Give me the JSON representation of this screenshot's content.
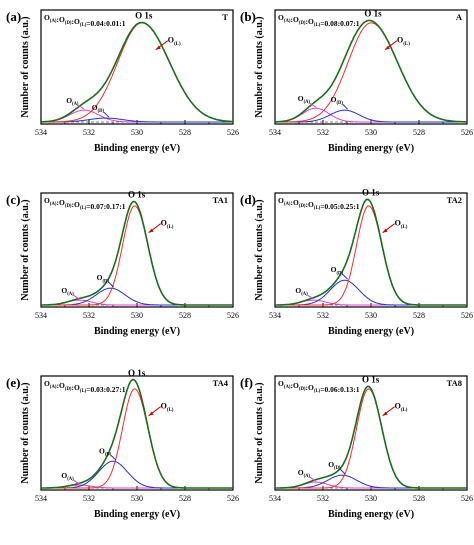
{
  "figure": {
    "colors": {
      "total": "#1a6e1a",
      "lattice": "#ff2a2a",
      "defect": "#1f2fd6",
      "adsorbed": "#e23bd8",
      "fitted": "#3a3a3a",
      "arrow": "#cc0000"
    }
  },
  "chart_data": [
    {
      "type": "line",
      "panel_label": "(a)",
      "sample": "T",
      "ratio": {
        "prefix": "O",
        "a_sub": "(A)",
        "d_sub": "(D)",
        "l_sub": "(L)",
        "value": "=0.04:0.01:1"
      },
      "peak_label": "O 1s",
      "component_labels": {
        "lattice": "O",
        "lattice_sub": "(L)",
        "defect": "O",
        "defect_sub": "(D)",
        "adsorbed": "O",
        "adsorbed_sub": "(A)"
      },
      "xlabel": "Binding energy (eV)",
      "ylabel": "Number of counts (a.u.)",
      "xlim": [
        534,
        526
      ],
      "xticks": [
        "534",
        "532",
        "530",
        "528",
        "526"
      ],
      "ylim": [
        0,
        1.15
      ],
      "baseline": 0.02,
      "peaks": {
        "lattice": {
          "center": 529.8,
          "height": 1.0,
          "sigma_lo": 1.0,
          "sigma_hi": 1.15
        },
        "defect": {
          "center": 531.3,
          "height": 0.04,
          "sigma_lo": 0.7,
          "sigma_hi": 0.7
        },
        "adsorbed": {
          "center": 532.2,
          "height": 0.12,
          "sigma_lo": 0.6,
          "sigma_hi": 0.6
        }
      }
    },
    {
      "type": "line",
      "panel_label": "(b)",
      "sample": "A",
      "ratio": {
        "prefix": "O",
        "a_sub": "(A)",
        "d_sub": "(D)",
        "l_sub": "(L)",
        "value": "=0.08:0.07:1"
      },
      "peak_label": "O 1s",
      "component_labels": {
        "lattice": "O",
        "lattice_sub": "(L)",
        "defect": "O",
        "defect_sub": "(D)",
        "adsorbed": "O",
        "adsorbed_sub": "(A)"
      },
      "xlabel": "Binding energy (eV)",
      "ylabel": "Number of counts (a.u.)",
      "xlim": [
        534,
        526
      ],
      "xticks": [
        "534",
        "532",
        "530",
        "528",
        "526"
      ],
      "ylim": [
        0,
        1.15
      ],
      "baseline": 0.02,
      "peaks": {
        "lattice": {
          "center": 530.0,
          "height": 1.0,
          "sigma_lo": 0.95,
          "sigma_hi": 1.1
        },
        "defect": {
          "center": 531.1,
          "height": 0.12,
          "sigma_lo": 0.6,
          "sigma_hi": 0.6
        },
        "adsorbed": {
          "center": 532.3,
          "height": 0.14,
          "sigma_lo": 0.55,
          "sigma_hi": 0.55
        }
      }
    },
    {
      "type": "line",
      "panel_label": "(c)",
      "sample": "TA1",
      "ratio": {
        "prefix": "O",
        "a_sub": "(A)",
        "d_sub": "(D)",
        "l_sub": "(L)",
        "value": "=0.07:0.17:1"
      },
      "peak_label": "O 1s",
      "component_labels": {
        "lattice": "O",
        "lattice_sub": "(L)",
        "defect": "O",
        "defect_sub": "(D)",
        "adsorbed": "O",
        "adsorbed_sub": "(A)"
      },
      "xlabel": "Binding energy (eV)",
      "ylabel": "Number of counts (a.u.)",
      "xlim": [
        534,
        526
      ],
      "xticks": [
        "534",
        "532",
        "530",
        "528",
        "526"
      ],
      "ylim": [
        0,
        1.15
      ],
      "baseline": 0.02,
      "peaks": {
        "lattice": {
          "center": 530.1,
          "height": 1.0,
          "sigma_lo": 0.5,
          "sigma_hi": 0.55
        },
        "defect": {
          "center": 531.1,
          "height": 0.17,
          "sigma_lo": 0.6,
          "sigma_hi": 0.6
        },
        "adsorbed": {
          "center": 532.4,
          "height": 0.05,
          "sigma_lo": 0.5,
          "sigma_hi": 0.5
        }
      }
    },
    {
      "type": "line",
      "panel_label": "(d)",
      "sample": "TA2",
      "ratio": {
        "prefix": "O",
        "a_sub": "(A)",
        "d_sub": "(D)",
        "l_sub": "(L)",
        "value": "=0.05:0.25:1"
      },
      "peak_label": "O 1s",
      "component_labels": {
        "lattice": "O",
        "lattice_sub": "(L)",
        "defect": "O",
        "defect_sub": "(D)",
        "adsorbed": "O",
        "adsorbed_sub": "(A)"
      },
      "xlabel": "Binding energy (eV)",
      "ylabel": "Number of counts (a.u.)",
      "xlim": [
        534,
        526
      ],
      "xticks": [
        "534",
        "532",
        "530",
        "528",
        "526"
      ],
      "ylim": [
        0,
        1.15
      ],
      "baseline": 0.02,
      "peaks": {
        "lattice": {
          "center": 530.1,
          "height": 1.0,
          "sigma_lo": 0.5,
          "sigma_hi": 0.55
        },
        "defect": {
          "center": 531.1,
          "height": 0.25,
          "sigma_lo": 0.6,
          "sigma_hi": 0.6
        },
        "adsorbed": {
          "center": 532.4,
          "height": 0.05,
          "sigma_lo": 0.5,
          "sigma_hi": 0.5
        }
      }
    },
    {
      "type": "line",
      "panel_label": "(e)",
      "sample": "TA4",
      "ratio": {
        "prefix": "O",
        "a_sub": "(A)",
        "d_sub": "(D)",
        "l_sub": "(L)",
        "value": "=0.03:0.27:1"
      },
      "peak_label": "O 1s",
      "component_labels": {
        "lattice": "O",
        "lattice_sub": "(L)",
        "defect": "O",
        "defect_sub": "(D)",
        "adsorbed": "O",
        "adsorbed_sub": "(A)"
      },
      "xlabel": "Binding energy (eV)",
      "ylabel": "Number of counts (a.u.)",
      "xlim": [
        534,
        526
      ],
      "xticks": [
        "534",
        "532",
        "530",
        "528",
        "526"
      ],
      "ylim": [
        0,
        1.15
      ],
      "baseline": 0.02,
      "peaks": {
        "lattice": {
          "center": 530.1,
          "height": 1.0,
          "sigma_lo": 0.5,
          "sigma_hi": 0.55
        },
        "defect": {
          "center": 531.0,
          "height": 0.27,
          "sigma_lo": 0.6,
          "sigma_hi": 0.6
        },
        "adsorbed": {
          "center": 532.4,
          "height": 0.03,
          "sigma_lo": 0.5,
          "sigma_hi": 0.5
        }
      }
    },
    {
      "type": "line",
      "panel_label": "(f)",
      "sample": "TA8",
      "ratio": {
        "prefix": "O",
        "a_sub": "(A)",
        "d_sub": "(D)",
        "l_sub": "(L)",
        "value": "=0.06:0.13:1"
      },
      "peak_label": "O 1s",
      "component_labels": {
        "lattice": "O",
        "lattice_sub": "(L)",
        "defect": "O",
        "defect_sub": "(D)",
        "adsorbed": "O",
        "adsorbed_sub": "(A)"
      },
      "xlabel": "Binding energy (eV)",
      "ylabel": "Number of counts (a.u.)",
      "xlim": [
        534,
        526
      ],
      "xticks": [
        "534",
        "532",
        "530",
        "528",
        "526"
      ],
      "ylim": [
        0,
        1.15
      ],
      "baseline": 0.02,
      "peaks": {
        "lattice": {
          "center": 530.1,
          "height": 1.0,
          "sigma_lo": 0.5,
          "sigma_hi": 0.55
        },
        "defect": {
          "center": 531.2,
          "height": 0.13,
          "sigma_lo": 0.6,
          "sigma_hi": 0.6
        },
        "adsorbed": {
          "center": 532.3,
          "height": 0.06,
          "sigma_lo": 0.5,
          "sigma_hi": 0.5
        }
      }
    }
  ]
}
